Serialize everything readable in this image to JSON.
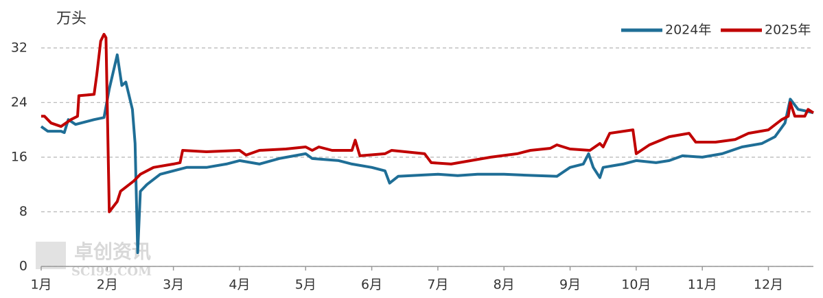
{
  "chart_data": {
    "type": "line",
    "y_unit": "万头",
    "watermark": [
      "卓创资讯",
      "SCI99.COM"
    ],
    "xlim": [
      1,
      12.68
    ],
    "xticks": [
      {
        "value": 1,
        "label": "1月"
      },
      {
        "value": 2,
        "label": "2月"
      },
      {
        "value": 3,
        "label": "3月"
      },
      {
        "value": 4,
        "label": "4月"
      },
      {
        "value": 5,
        "label": "5月"
      },
      {
        "value": 6,
        "label": "6月"
      },
      {
        "value": 7,
        "label": "7月"
      },
      {
        "value": 8,
        "label": "8月"
      },
      {
        "value": 9,
        "label": "9月"
      },
      {
        "value": 10,
        "label": "10月"
      },
      {
        "value": 11,
        "label": "11月"
      },
      {
        "value": 12,
        "label": "12月"
      }
    ],
    "ylim": [
      0,
      35
    ],
    "yticks": [
      0,
      8,
      16,
      24,
      32
    ],
    "grid": true,
    "legend": "top-right",
    "series": [
      {
        "name": "2024年",
        "color": "#1f6e96",
        "x": [
          1.0,
          1.1,
          1.3,
          1.35,
          1.41,
          1.52,
          1.8,
          1.95,
          2.03,
          2.15,
          2.22,
          2.28,
          2.38,
          2.42,
          2.46,
          2.5,
          2.6,
          2.8,
          3.0,
          3.2,
          3.5,
          3.8,
          4.0,
          4.3,
          4.6,
          5.0,
          5.1,
          5.5,
          5.7,
          6.0,
          6.2,
          6.27,
          6.4,
          6.8,
          7.0,
          7.3,
          7.6,
          8.0,
          8.5,
          8.8,
          9.0,
          9.2,
          9.28,
          9.35,
          9.45,
          9.5,
          9.8,
          10.0,
          10.3,
          10.5,
          10.7,
          11.0,
          11.3,
          11.6,
          11.9,
          12.1,
          12.25,
          12.33,
          12.45,
          12.55,
          12.68
        ],
        "values": [
          20.5,
          19.8,
          19.8,
          19.6,
          21.5,
          20.8,
          21.5,
          21.8,
          26,
          31,
          26.5,
          27,
          23,
          18,
          2,
          11,
          12,
          13.5,
          14,
          14.5,
          14.5,
          15,
          15.5,
          15,
          15.8,
          16.5,
          15.8,
          15.5,
          15,
          14.5,
          14,
          12.2,
          13.2,
          13.4,
          13.5,
          13.3,
          13.5,
          13.5,
          13.3,
          13.2,
          14.5,
          15,
          16.5,
          14.5,
          13,
          14.5,
          15,
          15.5,
          15.2,
          15.5,
          16.2,
          16,
          16.5,
          17.5,
          18,
          19,
          21,
          24.5,
          23,
          22.8,
          22.5
        ]
      },
      {
        "name": "2025年",
        "color": "#c00000",
        "x": [
          1.0,
          1.05,
          1.15,
          1.3,
          1.45,
          1.55,
          1.57,
          1.8,
          1.84,
          1.9,
          1.95,
          1.98,
          2.03,
          2.15,
          2.2,
          2.4,
          2.5,
          2.7,
          3.0,
          3.1,
          3.14,
          3.5,
          4.0,
          4.1,
          4.3,
          4.7,
          5.0,
          5.1,
          5.2,
          5.4,
          5.7,
          5.75,
          5.82,
          6.2,
          6.3,
          6.8,
          6.9,
          7.2,
          7.5,
          7.8,
          8.2,
          8.4,
          8.7,
          8.8,
          9.0,
          9.3,
          9.45,
          9.5,
          9.6,
          9.95,
          10.0,
          10.2,
          10.5,
          10.8,
          10.9,
          11.2,
          11.5,
          11.7,
          12.0,
          12.2,
          12.3,
          12.33,
          12.4,
          12.55,
          12.6,
          12.68
        ],
        "values": [
          22,
          22,
          21,
          20.5,
          21.5,
          22,
          25,
          25.2,
          28,
          33,
          34,
          33.5,
          8,
          9.5,
          11,
          12.5,
          13.5,
          14.5,
          15,
          15.2,
          17,
          16.8,
          17,
          16.3,
          17,
          17.2,
          17.5,
          17,
          17.5,
          17,
          17,
          18.5,
          16.2,
          16.5,
          17,
          16.5,
          15.2,
          15,
          15.5,
          16,
          16.5,
          17,
          17.3,
          17.8,
          17.2,
          17,
          18,
          17.5,
          19.5,
          20,
          16.5,
          17.8,
          19,
          19.5,
          18.2,
          18.2,
          18.6,
          19.5,
          20,
          21.5,
          22,
          24,
          22,
          22,
          23,
          22.5
        ]
      }
    ]
  }
}
